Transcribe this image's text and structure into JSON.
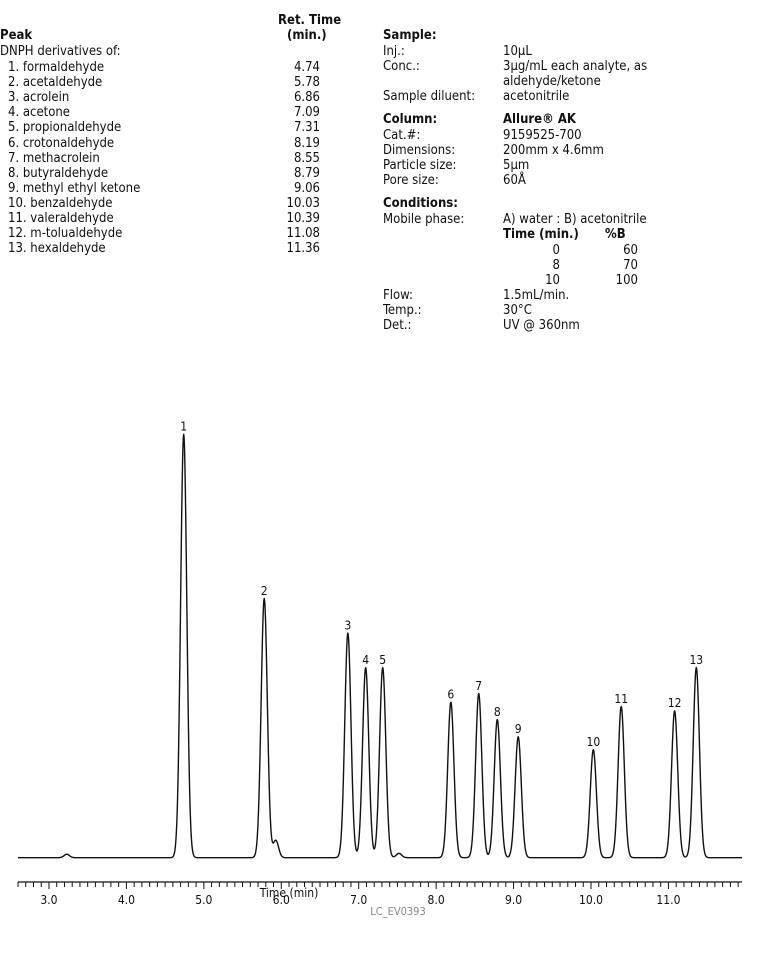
{
  "peak_table": {
    "header_ret_time_line1": "Ret. Time",
    "header_peak": "Peak",
    "header_ret_time_line2": "(min.)",
    "subheader": "DNPH derivatives of:",
    "rows": [
      {
        "label": "1. formaldehyde",
        "rt": "4.74"
      },
      {
        "label": "2. acetaldehyde",
        "rt": "5.78"
      },
      {
        "label": "3. acrolein",
        "rt": "6.86"
      },
      {
        "label": "4. acetone",
        "rt": "7.09"
      },
      {
        "label": "5. propionaldehyde",
        "rt": "7.31"
      },
      {
        "label": "6. crotonaldehyde",
        "rt": "8.19"
      },
      {
        "label": "7. methacrolein",
        "rt": "8.55"
      },
      {
        "label": "8. butyraldehyde",
        "rt": "8.79"
      },
      {
        "label": "9. methyl ethyl ketone",
        "rt": "9.06"
      },
      {
        "label": "10. benzaldehyde",
        "rt": "10.03"
      },
      {
        "label": "11. valeraldehyde",
        "rt": "10.39"
      },
      {
        "label": "12. m-tolualdehyde",
        "rt": "11.08"
      },
      {
        "label": "13. hexaldehyde",
        "rt": "11.36"
      }
    ]
  },
  "sample": {
    "heading": "Sample:",
    "inj_label": "Inj.:",
    "inj_value": "10μL",
    "conc_label": "Conc.:",
    "conc_value_line1": "3μg/mL each analyte, as",
    "conc_value_line2": "aldehyde/ketone",
    "diluent_label": "Sample diluent:",
    "diluent_value": "acetonitrile"
  },
  "column": {
    "heading": "Column:",
    "name": "Allure® AK",
    "cat_label": "Cat.#:",
    "cat_value": "9159525-700",
    "dim_label": "Dimensions:",
    "dim_value": "200mm x 4.6mm",
    "particle_label": "Particle size:",
    "particle_value": "5μm",
    "pore_label": "Pore size:",
    "pore_value": "60Å"
  },
  "conditions": {
    "heading": "Conditions:",
    "mobile_label": "Mobile phase:",
    "mobile_value": "A) water : B) acetonitrile",
    "gradient_header_time": "Time (min.)",
    "gradient_header_b": "%B",
    "gradient": [
      {
        "time": "0",
        "b": "60"
      },
      {
        "time": "8",
        "b": "70"
      },
      {
        "time": "10",
        "b": "100"
      }
    ],
    "flow_label": "Flow:",
    "flow_value": "1.5mL/min.",
    "temp_label": "Temp.:",
    "temp_value": "30°C",
    "det_label": "Det.:",
    "det_value": "UV @ 360nm"
  },
  "chart_data": {
    "type": "line",
    "xlabel": "Time (min)",
    "ylabel": "",
    "xlim": [
      2.6,
      11.95
    ],
    "ylim": [
      0,
      100
    ],
    "x_ticks": [
      "3.0",
      "4.0",
      "5.0",
      "6.0",
      "7.0",
      "8.0",
      "9.0",
      "10.0",
      "11.0"
    ],
    "baseline": 2,
    "peaks": [
      {
        "label": "1",
        "rt": 4.74,
        "height": 98
      },
      {
        "label": "2",
        "rt": 5.78,
        "height": 60
      },
      {
        "label": "3",
        "rt": 6.86,
        "height": 52
      },
      {
        "label": "4",
        "rt": 7.09,
        "height": 44
      },
      {
        "label": "5",
        "rt": 7.31,
        "height": 44
      },
      {
        "label": "6",
        "rt": 8.19,
        "height": 36
      },
      {
        "label": "7",
        "rt": 8.55,
        "height": 38
      },
      {
        "label": "8",
        "rt": 8.79,
        "height": 32
      },
      {
        "label": "9",
        "rt": 9.06,
        "height": 28
      },
      {
        "label": "10",
        "rt": 10.03,
        "height": 25
      },
      {
        "label": "11",
        "rt": 10.39,
        "height": 35
      },
      {
        "label": "12",
        "rt": 11.08,
        "height": 34
      },
      {
        "label": "13",
        "rt": 11.36,
        "height": 44
      }
    ],
    "minor_peaks": [
      {
        "rt": 3.23,
        "height": 0.8
      },
      {
        "rt": 5.93,
        "height": 4
      },
      {
        "rt": 7.52,
        "height": 1
      }
    ]
  },
  "figure_id": "LC_EV0393"
}
